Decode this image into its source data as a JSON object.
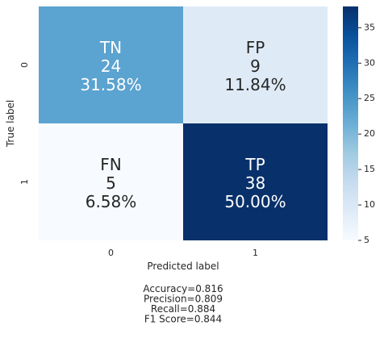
{
  "chart_data": {
    "type": "heatmap",
    "rows": [
      "0",
      "1"
    ],
    "cols": [
      "0",
      "1"
    ],
    "cells": [
      [
        {
          "group": "TN",
          "count": "24",
          "percent": "31.58%",
          "value": 24,
          "color": "#5ba3d0"
        },
        {
          "group": "FP",
          "count": "9",
          "percent": "11.84%",
          "value": 9,
          "color": "#deebf7"
        }
      ],
      [
        {
          "group": "FN",
          "count": "5",
          "percent": "6.58%",
          "value": 5,
          "color": "#f7fbff"
        },
        {
          "group": "TP",
          "count": "38",
          "percent": "50.00%",
          "value": 38,
          "color": "#08306b"
        }
      ]
    ],
    "xlabel": "Predicted label",
    "ylabel": "True label",
    "colorbar": {
      "min": 5,
      "max": 38,
      "ticks": [
        "5",
        "10",
        "15",
        "20",
        "25",
        "30",
        "35"
      ],
      "stops": [
        "#f7fbff",
        "#deebf7",
        "#c6dbef",
        "#9ecae1",
        "#6baed6",
        "#4292c6",
        "#2171b5",
        "#08519c",
        "#08306b"
      ]
    },
    "metrics": [
      "Accuracy=0.816",
      "Precision=0.809",
      "Recall=0.884",
      "F1 Score=0.844"
    ]
  }
}
